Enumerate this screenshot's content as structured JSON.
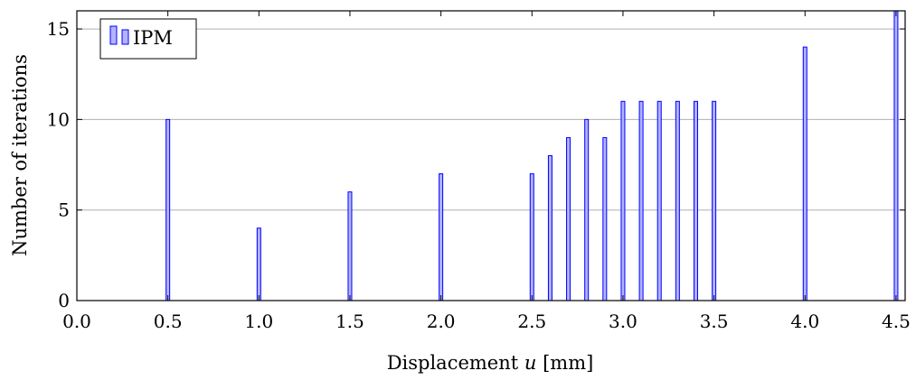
{
  "chart_data": {
    "type": "bar",
    "x": [
      0.5,
      1.0,
      1.5,
      2.0,
      2.5,
      2.6,
      2.7,
      2.8,
      2.9,
      3.0,
      3.1,
      3.2,
      3.3,
      3.4,
      3.5,
      4.0,
      4.5
    ],
    "series": [
      {
        "name": "IPM",
        "values": [
          10,
          4,
          6,
          7,
          7,
          8,
          9,
          10,
          9,
          11,
          11,
          11,
          11,
          11,
          11,
          14,
          16
        ]
      }
    ],
    "xlabel_text": "Displacement ",
    "xlabel_var": "u",
    "xlabel_unit": " [mm]",
    "ylabel": "Number of iterations",
    "xlim": [
      0.0,
      4.55
    ],
    "ylim": [
      0,
      16
    ],
    "xticks": [
      "0.0",
      "0.5",
      "1.0",
      "1.5",
      "2.0",
      "2.5",
      "3.0",
      "3.5",
      "4.0",
      "4.5"
    ],
    "yticks": [
      "0",
      "5",
      "10",
      "15"
    ],
    "grid": "horizontal",
    "legend": "top-left",
    "colors": {
      "bar_fill": "#b3b3ff",
      "bar_stroke": "#0000ff",
      "grid": "#b0b0b0"
    }
  }
}
